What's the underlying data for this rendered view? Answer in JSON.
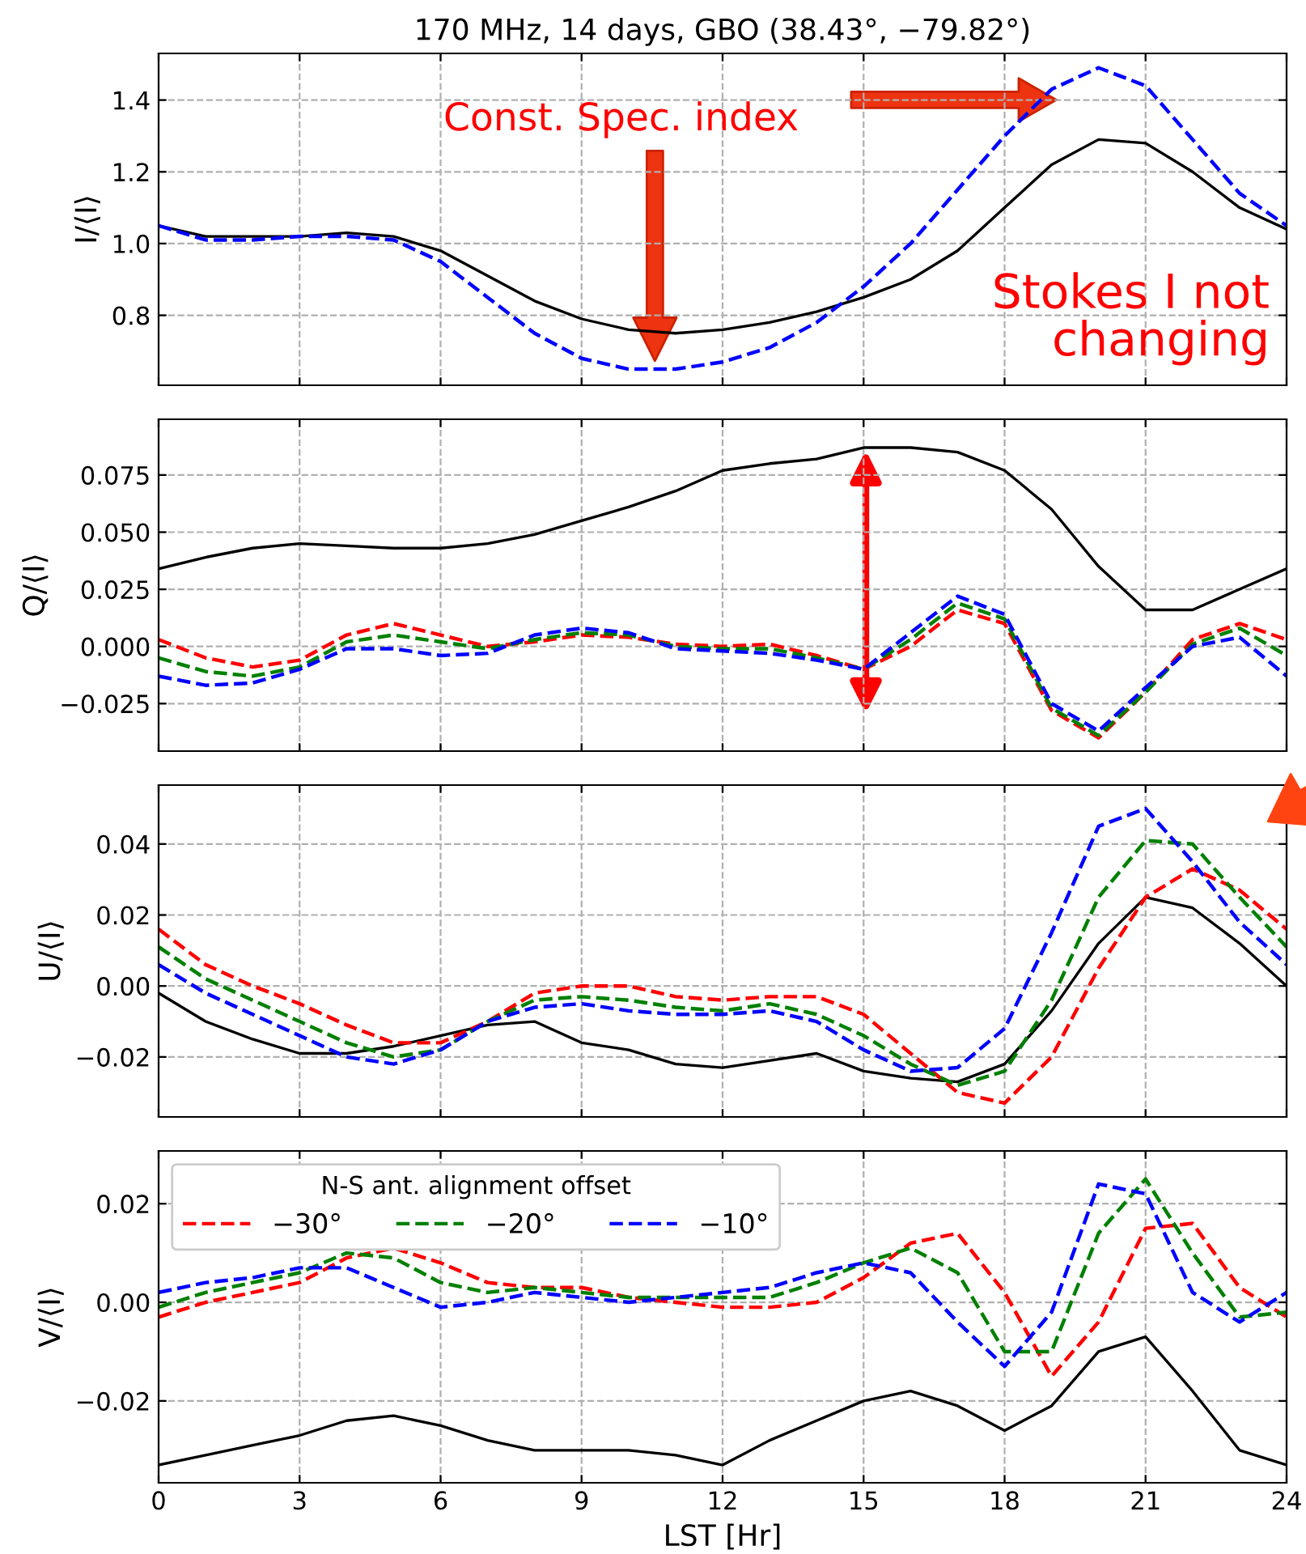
{
  "chart_data": [
    {
      "type": "line",
      "title": "170 MHz, 14 days, GBO (38.43°, −79.82°)",
      "ylabel": "I/⟨I⟩",
      "xlim": [
        0,
        24
      ],
      "xticks": [
        0,
        3,
        6,
        9,
        12,
        15,
        18,
        21,
        24
      ],
      "ylim": [
        0.605,
        1.53
      ],
      "yticks": [
        0.8,
        {
          "value": 1.0,
          "label": "1.0"
        },
        1.2,
        1.4
      ],
      "grid": true,
      "tick_labels": "y",
      "x": [
        0,
        1,
        2,
        3,
        4,
        5,
        6,
        7,
        8,
        9,
        10,
        11,
        12,
        13,
        14,
        15,
        16,
        17,
        18,
        19,
        20,
        21,
        22,
        23,
        24
      ],
      "annotations": [
        "Const. Spec. index",
        "Stokes I not changing"
      ],
      "series": [
        {
          "color": "#000000",
          "line_style": "solid",
          "values": [
            1.05,
            1.02,
            1.02,
            1.02,
            1.03,
            1.02,
            0.98,
            0.91,
            0.84,
            0.79,
            0.76,
            0.75,
            0.76,
            0.78,
            0.81,
            0.85,
            0.9,
            0.98,
            1.1,
            1.22,
            1.29,
            1.28,
            1.2,
            1.1,
            1.04
          ]
        },
        {
          "color": "#0000ff",
          "line_style": "dashed",
          "values": [
            1.05,
            1.01,
            1.01,
            1.02,
            1.02,
            1.01,
            0.95,
            0.85,
            0.75,
            0.68,
            0.65,
            0.65,
            0.67,
            0.71,
            0.78,
            0.88,
            1.0,
            1.15,
            1.3,
            1.43,
            1.49,
            1.44,
            1.29,
            1.14,
            1.05
          ]
        }
      ]
    },
    {
      "type": "line",
      "ylabel": "Q/⟨I⟩",
      "xlim": [
        0,
        24
      ],
      "xticks": [
        0,
        3,
        6,
        9,
        12,
        15,
        18,
        21,
        24
      ],
      "ylim": [
        -0.0458,
        0.0994
      ],
      "yticks": [
        {
          "value": -0.025,
          "label": "−0.025"
        },
        {
          "value": 0.0,
          "label": "0.000"
        },
        {
          "value": 0.025,
          "label": "0.025"
        },
        {
          "value": 0.05,
          "label": "0.050"
        },
        {
          "value": 0.075,
          "label": "0.075"
        }
      ],
      "grid": true,
      "tick_labels": "y",
      "x": [
        0,
        1,
        2,
        3,
        4,
        5,
        6,
        7,
        8,
        9,
        10,
        11,
        12,
        13,
        14,
        15,
        16,
        17,
        18,
        19,
        20,
        21,
        22,
        23,
        24
      ],
      "series": [
        {
          "color": "#000000",
          "line_style": "solid",
          "values": [
            0.034,
            0.039,
            0.043,
            0.045,
            0.044,
            0.043,
            0.043,
            0.045,
            0.049,
            0.055,
            0.061,
            0.068,
            0.077,
            0.08,
            0.082,
            0.087,
            0.087,
            0.085,
            0.077,
            0.06,
            0.035,
            0.016,
            0.016,
            0.025,
            0.034
          ]
        },
        {
          "color": "#ff0000",
          "line_style": "dashed",
          "values": [
            0.003,
            -0.005,
            -0.009,
            -0.006,
            0.005,
            0.01,
            0.005,
            0.0,
            0.002,
            0.005,
            0.004,
            0.001,
            0.0,
            0.001,
            -0.004,
            -0.01,
            0.0,
            0.016,
            0.01,
            -0.028,
            -0.04,
            -0.02,
            0.003,
            0.01,
            0.003
          ]
        },
        {
          "color": "#008000",
          "line_style": "dashed",
          "values": [
            -0.005,
            -0.011,
            -0.013,
            -0.009,
            0.002,
            0.005,
            0.002,
            -0.001,
            0.003,
            0.006,
            0.005,
            0.0,
            -0.001,
            -0.001,
            -0.005,
            -0.01,
            0.003,
            0.019,
            0.012,
            -0.027,
            -0.039,
            -0.02,
            0.001,
            0.008,
            -0.004
          ]
        },
        {
          "color": "#0000ff",
          "line_style": "dashed",
          "values": [
            -0.013,
            -0.017,
            -0.016,
            -0.01,
            -0.001,
            -0.001,
            -0.004,
            -0.003,
            0.005,
            0.008,
            0.006,
            -0.001,
            -0.002,
            -0.003,
            -0.006,
            -0.01,
            0.006,
            0.022,
            0.014,
            -0.025,
            -0.037,
            -0.018,
            0.0,
            0.004,
            -0.013
          ]
        }
      ]
    },
    {
      "type": "line",
      "ylabel": "U/⟨I⟩",
      "xlim": [
        0,
        24
      ],
      "xticks": [
        0,
        3,
        6,
        9,
        12,
        15,
        18,
        21,
        24
      ],
      "ylim": [
        -0.0369,
        0.0566
      ],
      "yticks": [
        {
          "value": -0.02,
          "label": "−0.02"
        },
        {
          "value": 0.0,
          "label": "0.00"
        },
        {
          "value": 0.02,
          "label": "0.02"
        },
        {
          "value": 0.04,
          "label": "0.04"
        }
      ],
      "grid": true,
      "tick_labels": "y",
      "x": [
        0,
        1,
        2,
        3,
        4,
        5,
        6,
        7,
        8,
        9,
        10,
        11,
        12,
        13,
        14,
        15,
        16,
        17,
        18,
        19,
        20,
        21,
        22,
        23,
        24
      ],
      "series": [
        {
          "color": "#000000",
          "line_style": "solid",
          "values": [
            -0.002,
            -0.01,
            -0.015,
            -0.019,
            -0.019,
            -0.017,
            -0.014,
            -0.011,
            -0.01,
            -0.016,
            -0.018,
            -0.022,
            -0.023,
            -0.021,
            -0.019,
            -0.024,
            -0.026,
            -0.027,
            -0.022,
            -0.007,
            0.012,
            0.025,
            0.022,
            0.012,
            0.0
          ]
        },
        {
          "color": "#ff0000",
          "line_style": "dashed",
          "values": [
            0.016,
            0.006,
            0.0,
            -0.005,
            -0.011,
            -0.016,
            -0.016,
            -0.01,
            -0.002,
            0.0,
            0.0,
            -0.003,
            -0.004,
            -0.003,
            -0.003,
            -0.008,
            -0.019,
            -0.03,
            -0.033,
            -0.02,
            0.005,
            0.025,
            0.033,
            0.027,
            0.016
          ]
        },
        {
          "color": "#008000",
          "line_style": "dashed",
          "values": [
            0.011,
            0.002,
            -0.004,
            -0.01,
            -0.016,
            -0.02,
            -0.018,
            -0.01,
            -0.004,
            -0.003,
            -0.004,
            -0.006,
            -0.007,
            -0.005,
            -0.008,
            -0.014,
            -0.022,
            -0.028,
            -0.024,
            -0.004,
            0.025,
            0.041,
            0.04,
            0.025,
            0.011
          ]
        },
        {
          "color": "#0000ff",
          "line_style": "dashed",
          "values": [
            0.006,
            -0.002,
            -0.008,
            -0.014,
            -0.02,
            -0.022,
            -0.018,
            -0.01,
            -0.006,
            -0.005,
            -0.007,
            -0.008,
            -0.008,
            -0.007,
            -0.01,
            -0.018,
            -0.024,
            -0.023,
            -0.012,
            0.015,
            0.045,
            0.05,
            0.035,
            0.018,
            0.006
          ]
        }
      ]
    },
    {
      "type": "line",
      "ylabel": "V/⟨I⟩",
      "xlabel": "LST [Hr]",
      "xlim": [
        0,
        24
      ],
      "xticks": [
        0,
        3,
        6,
        9,
        12,
        15,
        18,
        21,
        24
      ],
      "ylim": [
        -0.0366,
        0.0307
      ],
      "yticks": [
        {
          "value": -0.02,
          "label": "−0.02"
        },
        {
          "value": 0.0,
          "label": "0.00"
        },
        {
          "value": 0.02,
          "label": "0.02"
        }
      ],
      "grid": true,
      "legend": "top left",
      "legend_title": "N-S ant. alignment offset",
      "x": [
        0,
        1,
        2,
        3,
        4,
        5,
        6,
        7,
        8,
        9,
        10,
        11,
        12,
        13,
        14,
        15,
        16,
        17,
        18,
        19,
        20,
        21,
        22,
        23,
        24
      ],
      "series": [
        {
          "color": "#000000",
          "line_style": "solid",
          "values": [
            -0.033,
            -0.031,
            -0.029,
            -0.027,
            -0.024,
            -0.023,
            -0.025,
            -0.028,
            -0.03,
            -0.03,
            -0.03,
            -0.031,
            -0.033,
            -0.028,
            -0.024,
            -0.02,
            -0.018,
            -0.021,
            -0.026,
            -0.021,
            -0.01,
            -0.007,
            -0.018,
            -0.03,
            -0.033
          ]
        },
        {
          "name": "−30°",
          "color": "#ff0000",
          "line_style": "dashed",
          "values": [
            -0.003,
            0.0,
            0.002,
            0.004,
            0.009,
            0.011,
            0.008,
            0.004,
            0.003,
            0.003,
            0.001,
            0.0,
            -0.001,
            -0.001,
            0.0,
            0.005,
            0.012,
            0.014,
            0.002,
            -0.015,
            -0.004,
            0.015,
            0.016,
            0.003,
            -0.003
          ]
        },
        {
          "name": "−20°",
          "color": "#008000",
          "line_style": "dashed",
          "values": [
            -0.001,
            0.002,
            0.004,
            0.006,
            0.01,
            0.009,
            0.004,
            0.002,
            0.003,
            0.002,
            0.001,
            0.001,
            0.001,
            0.001,
            0.004,
            0.008,
            0.011,
            0.006,
            -0.01,
            -0.01,
            0.014,
            0.025,
            0.01,
            -0.003,
            -0.002
          ]
        },
        {
          "name": "−10°",
          "color": "#0000ff",
          "line_style": "dashed",
          "values": [
            0.002,
            0.004,
            0.005,
            0.007,
            0.007,
            0.003,
            -0.001,
            0.0,
            0.002,
            0.001,
            0.0,
            0.001,
            0.002,
            0.003,
            0.006,
            0.008,
            0.006,
            -0.004,
            -0.013,
            -0.002,
            0.024,
            0.022,
            0.002,
            -0.004,
            0.002
          ]
        }
      ]
    }
  ]
}
